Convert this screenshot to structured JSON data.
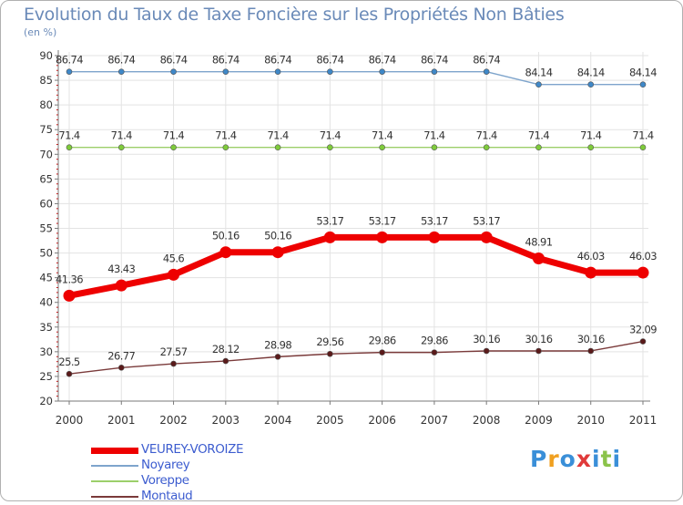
{
  "title": "Evolution du Taux de Taxe Foncière sur les Propriétés Non Bâties",
  "unit_label": "(en %)",
  "colors": {
    "axis": "#7a7a7a",
    "grid": "#e3e3e3",
    "tick_text": "#333333",
    "tick_red": "#cc0000",
    "label_text": "#333333"
  },
  "chart_data": {
    "type": "line",
    "title": "Evolution du Taux de Taxe Foncière sur les Propriétés Non Bâties",
    "xlabel": "",
    "ylabel": "(en %)",
    "x": [
      "2000",
      "2001",
      "2002",
      "2003",
      "2004",
      "2005",
      "2006",
      "2007",
      "2008",
      "2009",
      "2010",
      "2011"
    ],
    "ylim": [
      20,
      90
    ],
    "yticks": [
      "20",
      "25",
      "30",
      "35",
      "40",
      "45",
      "50",
      "55",
      "60",
      "65",
      "70",
      "75",
      "80",
      "85",
      "90"
    ],
    "grid": true,
    "series": [
      {
        "name": "VEUREY-VOROIZE",
        "color": "#ee0000",
        "marker_fill": "#ee0000",
        "width": "thick",
        "values": [
          41.36,
          43.43,
          45.6,
          50.16,
          50.16,
          53.17,
          53.17,
          53.17,
          53.17,
          48.91,
          46.03,
          46.03
        ],
        "labels": [
          "41.36",
          "43.43",
          "45.6",
          "50.16",
          "50.16",
          "53.17",
          "53.17",
          "53.17",
          "53.17",
          "48.91",
          "46.03",
          "46.03"
        ]
      },
      {
        "name": "Noyarey",
        "color": "#7ea4cc",
        "marker_fill": "#3f88c8",
        "width": "thin",
        "values": [
          86.74,
          86.74,
          86.74,
          86.74,
          86.74,
          86.74,
          86.74,
          86.74,
          86.74,
          84.14,
          84.14,
          84.14
        ],
        "labels": [
          "86.74",
          "86.74",
          "86.74",
          "86.74",
          "86.74",
          "86.74",
          "86.74",
          "86.74",
          "86.74",
          "84.14",
          "84.14",
          "84.14"
        ]
      },
      {
        "name": "Voreppe",
        "color": "#9ccf6a",
        "marker_fill": "#7ecb3a",
        "width": "thin",
        "values": [
          71.4,
          71.4,
          71.4,
          71.4,
          71.4,
          71.4,
          71.4,
          71.4,
          71.4,
          71.4,
          71.4,
          71.4
        ],
        "labels": [
          "71.4",
          "71.4",
          "71.4",
          "71.4",
          "71.4",
          "71.4",
          "71.4",
          "71.4",
          "71.4",
          "71.4",
          "71.4",
          "71.4"
        ]
      },
      {
        "name": "Montaud",
        "color": "#7a3a3a",
        "marker_fill": "#5a1a1a",
        "width": "thin",
        "values": [
          25.5,
          26.77,
          27.57,
          28.12,
          28.98,
          29.56,
          29.86,
          29.86,
          30.16,
          30.16,
          30.16,
          32.09
        ],
        "labels": [
          "25.5",
          "26.77",
          "27.57",
          "28.12",
          "28.98",
          "29.56",
          "29.86",
          "29.86",
          "30.16",
          "30.16",
          "30.16",
          "32.09"
        ]
      }
    ],
    "legend_position": "bottom-left"
  },
  "logo": {
    "letters": [
      "P",
      "r",
      "o",
      "x",
      "i",
      "t",
      "i"
    ],
    "colors": [
      "#3a8fd8",
      "#f0a020",
      "#3a8fd8",
      "#e03a3a",
      "#3a8fd8",
      "#8bc34a",
      "#3a8fd8"
    ]
  }
}
